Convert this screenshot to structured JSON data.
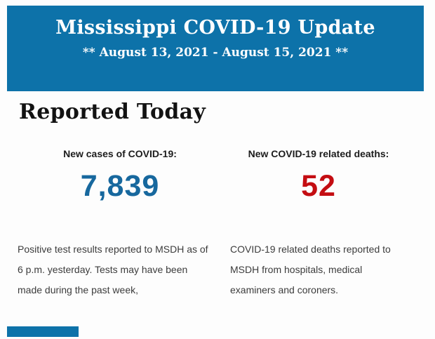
{
  "banner": {
    "title": "Mississippi COVID-19 Update",
    "subtitle": "** August 13, 2021 - August 15, 2021 **",
    "background_color": "#0d72a9",
    "text_color": "#ffffff"
  },
  "section": {
    "heading": "Reported Today"
  },
  "stats": {
    "cases": {
      "label": "New cases of COVID-19:",
      "value": "7,839",
      "value_color": "#17689e",
      "description": "Positive test results reported to MSDH as of 6 p.m. yesterday. Tests may have been made during the past week,"
    },
    "deaths": {
      "label": "New COVID-19 related deaths:",
      "value": "52",
      "value_color": "#c40d12",
      "description": "COVID-19 related deaths reported to MSDH from hospitals, medical examiners and coroners."
    }
  },
  "footer": {
    "partial_banner_color": "#0d72a9"
  }
}
